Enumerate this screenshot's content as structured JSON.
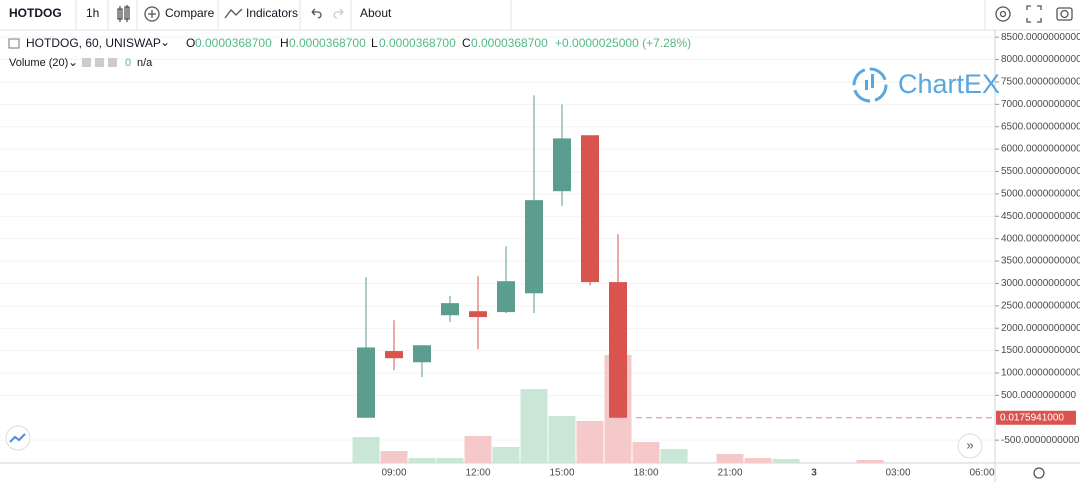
{
  "toolbar": {
    "symbol": "HOTDOG",
    "interval": "1h",
    "compare": "Compare",
    "indicators": "Indicators",
    "about": "About"
  },
  "legend": {
    "title": "HOTDOG, 60, UNISWAP",
    "open_label": "O",
    "open": "0.0000368700",
    "high_label": "H",
    "high": "0.0000368700",
    "low_label": "L",
    "low": "0.0000368700",
    "close_label": "C",
    "close": "0.0000368700",
    "change": "+0.0000025000 (+7.28%)",
    "volume_title": "Volume (20)",
    "volume_value": "0",
    "volume_ma": "n/a"
  },
  "logo": "ChartEX",
  "chart_data": {
    "type": "candlestick",
    "categories": [
      null,
      "09:00",
      null,
      null,
      "12:00",
      null,
      null,
      "15:00",
      null,
      null,
      "18:00",
      null,
      null,
      "21:00",
      null,
      null,
      "3",
      null,
      null,
      "03:00",
      null,
      null,
      "06:00",
      null
    ],
    "open": [
      0,
      1490,
      1240,
      2290,
      2380,
      2360,
      2780,
      5060,
      6310,
      3030,
      null,
      null,
      null,
      null,
      null,
      null,
      null,
      null,
      null,
      null,
      null,
      null,
      null,
      null
    ],
    "high": [
      3140,
      2180,
      1620,
      2720,
      3160,
      3830,
      7200,
      7000,
      6310,
      4100,
      null,
      null,
      null,
      null,
      null,
      null,
      null,
      null,
      null,
      null,
      null,
      null,
      null,
      null
    ],
    "low": [
      0,
      1060,
      910,
      2140,
      1530,
      2340,
      2340,
      4730,
      2960,
      0,
      null,
      null,
      null,
      null,
      null,
      null,
      null,
      null,
      null,
      null,
      null,
      null,
      null,
      null
    ],
    "close": [
      1570,
      1330,
      1620,
      2560,
      2250,
      3050,
      4860,
      6240,
      3030,
      0.0175941,
      null,
      null,
      null,
      null,
      null,
      null,
      null,
      null,
      null,
      null,
      null,
      null,
      null,
      null
    ],
    "up_color": "#5b9e90",
    "down_color": "#d9534f",
    "volume": {
      "values": [
        26,
        12,
        5,
        5,
        27,
        16,
        74,
        47,
        42,
        108,
        21,
        14,
        null,
        9,
        5,
        4,
        null,
        null,
        3,
        null,
        null,
        null,
        null,
        null
      ],
      "colors": [
        "#c9e6d6",
        "#f5c9c9",
        "#c9e6d6",
        "#c9e6d6",
        "#f5c9c9",
        "#c9e6d6",
        "#c9e6d6",
        "#c9e6d6",
        "#f5c9c9",
        "#f5c9c9",
        "#f5c9c9",
        "#c9e6d6",
        null,
        "#f5c9c9",
        "#f5c9c9",
        "#c9e6d6",
        null,
        null,
        "#f5c9c9",
        null,
        null,
        null,
        null,
        null
      ]
    },
    "last_price": {
      "value": 0.0175941,
      "label": "0.0175941000"
    },
    "ylim": [
      -1010,
      8660
    ],
    "yticks": [
      {
        "value": 8500,
        "label": "8500.0000000000"
      },
      {
        "value": 8000,
        "label": "8000.0000000000"
      },
      {
        "value": 7500,
        "label": "7500.0000000000"
      },
      {
        "value": 7000,
        "label": "7000.0000000000"
      },
      {
        "value": 6500,
        "label": "6500.0000000000"
      },
      {
        "value": 6000,
        "label": "6000.0000000000"
      },
      {
        "value": 5500,
        "label": "5500.0000000000"
      },
      {
        "value": 5000,
        "label": "5000.0000000000"
      },
      {
        "value": 4500,
        "label": "4500.0000000000"
      },
      {
        "value": 4000,
        "label": "4000.0000000000"
      },
      {
        "value": 3500,
        "label": "3500.0000000000"
      },
      {
        "value": 3000,
        "label": "3000.0000000000"
      },
      {
        "value": 2500,
        "label": "2500.0000000000"
      },
      {
        "value": 2000,
        "label": "2000.0000000000"
      },
      {
        "value": 1500,
        "label": "1500.0000000000"
      },
      {
        "value": 1000,
        "label": "1000.0000000000"
      },
      {
        "value": 500,
        "label": "500.0000000000"
      },
      {
        "value": -500,
        "label": "-500.0000000000"
      }
    ],
    "grid": true
  }
}
